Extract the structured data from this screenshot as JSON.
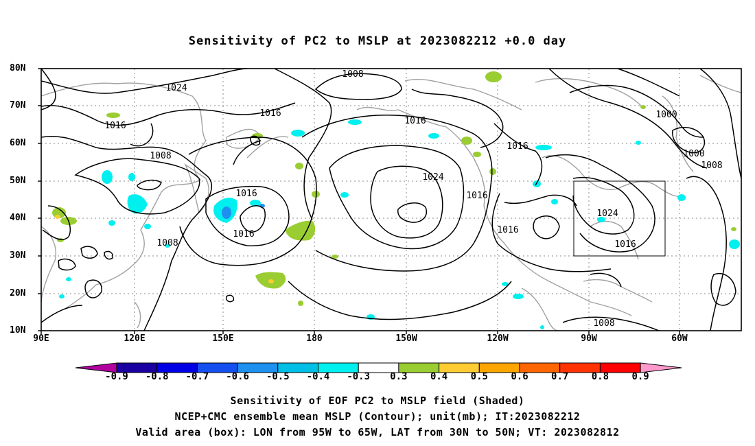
{
  "title": "Sensitivity of PC2 to MSLP at 2023082212 +0.0 day",
  "lat_labels": [
    "80N",
    "70N",
    "60N",
    "50N",
    "40N",
    "30N",
    "20N",
    "10N"
  ],
  "lon_labels": [
    "90E",
    "120E",
    "150E",
    "180",
    "150W",
    "120W",
    "90W",
    "60W"
  ],
  "contour_labels": {
    "c1024a": "1024",
    "c1016a": "1016",
    "c1016b": "1016",
    "c1008a": "1008",
    "c1008b": "1008",
    "c1008c": "1008",
    "c1016c": "1016",
    "c1016d": "1016",
    "c1024b": "1024",
    "c1016e": "1016",
    "c1016f": "1016",
    "c1016g": "1016",
    "c1000a": "1000",
    "c1000b": "1000",
    "c1008d": "1008",
    "c1024c": "1024",
    "c1016h": "1016",
    "c1008e": "1008"
  },
  "colorbar": {
    "ticks": [
      "-0.9",
      "-0.8",
      "-0.7",
      "-0.6",
      "-0.5",
      "-0.4",
      "-0.3",
      "0.3",
      "0.4",
      "0.5",
      "0.6",
      "0.7",
      "0.8",
      "0.9"
    ],
    "colors": [
      "#b0009e",
      "#1a00a0",
      "#0000e6",
      "#1450f0",
      "#1e90f0",
      "#00bfe6",
      "#00f0f0",
      "#ffffff",
      "#9acd32",
      "#ffcc33",
      "#ffa500",
      "#ff6600",
      "#ff3300",
      "#ff0000",
      "#ff99cc"
    ]
  },
  "captions": {
    "line1": "Sensitivity of EOF PC2 to MSLP field (Shaded)",
    "line2": "NCEP+CMC ensemble mean MSLP (Contour); unit(mb); IT:2023082212",
    "line3": "Valid area (box): LON from 95W to 65W, LAT from 30N to 50N; VT: 2023082812"
  }
}
